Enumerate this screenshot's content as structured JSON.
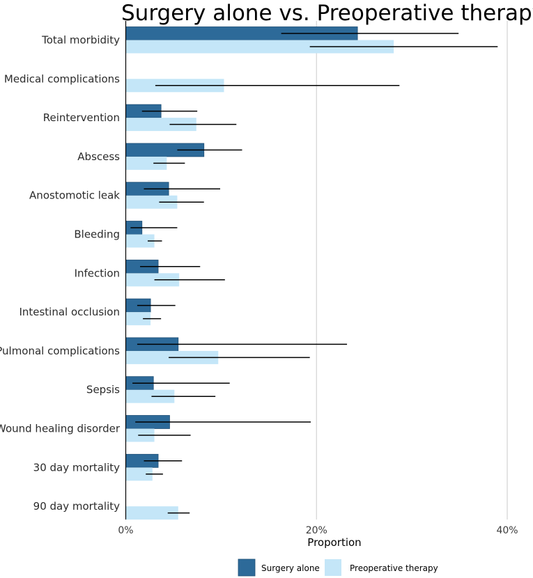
{
  "chart_data": {
    "type": "bar",
    "orientation": "horizontal",
    "title": "Surgery alone vs. Preoperative therapy",
    "xlabel": "Proportion",
    "ylabel": "",
    "xlim": [
      0,
      0.4
    ],
    "xticks": [
      0,
      0.2,
      0.4
    ],
    "xtick_labels": [
      "0%",
      "20%",
      "40%"
    ],
    "grid": "vertical major gridlines",
    "legend_position": "bottom",
    "colors": {
      "Surgery alone": "#2d6a99",
      "Preoperative therapy": "#c4e6f8",
      "gridline": "#d3d3d3",
      "error_bar": "#000000"
    },
    "categories": [
      "Total morbidity",
      "Medical complications",
      "Reintervention",
      "Abscess",
      "Anostomotic leak",
      "Bleeding",
      "Infection",
      "Intestinal occlusion",
      "Pulmonal complications",
      "Sepsis",
      "Wound healing disorder",
      "30 day mortality",
      "90 day mortality"
    ],
    "series": [
      {
        "name": "Surgery alone",
        "values": [
          0.243,
          null,
          0.037,
          0.082,
          0.045,
          0.017,
          0.034,
          0.026,
          0.055,
          0.029,
          0.046,
          0.034,
          null
        ],
        "ci_low": [
          0.163,
          null,
          0.017,
          0.054,
          0.019,
          0.005,
          0.015,
          0.012,
          0.012,
          0.007,
          0.01,
          0.019,
          null
        ],
        "ci_high": [
          0.349,
          null,
          0.075,
          0.122,
          0.099,
          0.054,
          0.078,
          0.052,
          0.232,
          0.109,
          0.194,
          0.059,
          null
        ]
      },
      {
        "name": "Preoperative therapy",
        "values": [
          0.281,
          0.103,
          0.074,
          0.043,
          0.054,
          0.03,
          0.056,
          0.026,
          0.097,
          0.051,
          0.03,
          0.028,
          0.055
        ],
        "ci_low": [
          0.193,
          0.031,
          0.046,
          0.029,
          0.035,
          0.023,
          0.03,
          0.018,
          0.045,
          0.027,
          0.013,
          0.021,
          0.044
        ],
        "ci_high": [
          0.39,
          0.287,
          0.116,
          0.062,
          0.082,
          0.038,
          0.104,
          0.037,
          0.193,
          0.094,
          0.068,
          0.039,
          0.067
        ]
      }
    ]
  }
}
